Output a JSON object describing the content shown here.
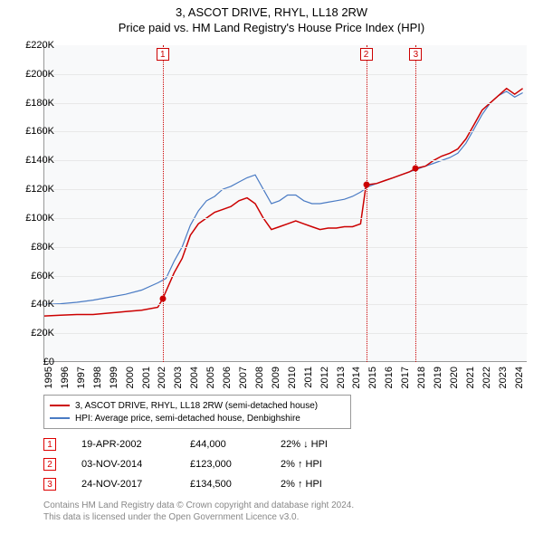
{
  "title": {
    "line1": "3, ASCOT DRIVE, RHYL, LL18 2RW",
    "line2": "Price paid vs. HM Land Registry's House Price Index (HPI)"
  },
  "chart": {
    "type": "line",
    "background_color": "#f8f9fa",
    "grid_color": "#e8e8e8",
    "axis_color": "#999999",
    "x_range": [
      1995,
      2024.8
    ],
    "y_range": [
      0,
      220000
    ],
    "y_ticks": [
      0,
      20000,
      40000,
      60000,
      80000,
      100000,
      120000,
      140000,
      160000,
      180000,
      200000,
      220000
    ],
    "y_tick_labels": [
      "£0",
      "£20K",
      "£40K",
      "£60K",
      "£80K",
      "£100K",
      "£120K",
      "£140K",
      "£160K",
      "£180K",
      "£200K",
      "£220K"
    ],
    "x_ticks": [
      1995,
      1996,
      1997,
      1998,
      1999,
      2000,
      2001,
      2002,
      2003,
      2004,
      2005,
      2006,
      2007,
      2008,
      2009,
      2010,
      2011,
      2012,
      2013,
      2014,
      2015,
      2016,
      2017,
      2018,
      2019,
      2020,
      2021,
      2022,
      2023,
      2024
    ],
    "tick_fontsize": 11,
    "series": {
      "property": {
        "color": "#cc0000",
        "width": 1.5,
        "points": [
          [
            1995,
            32000
          ],
          [
            1996,
            32500
          ],
          [
            1997,
            33000
          ],
          [
            1998,
            33000
          ],
          [
            1999,
            34000
          ],
          [
            2000,
            35000
          ],
          [
            2001,
            36000
          ],
          [
            2002,
            38000
          ],
          [
            2002.3,
            44000
          ],
          [
            2003,
            62000
          ],
          [
            2003.5,
            72000
          ],
          [
            2004,
            88000
          ],
          [
            2004.5,
            96000
          ],
          [
            2005,
            100000
          ],
          [
            2005.5,
            104000
          ],
          [
            2006,
            106000
          ],
          [
            2006.5,
            108000
          ],
          [
            2007,
            112000
          ],
          [
            2007.5,
            114000
          ],
          [
            2008,
            110000
          ],
          [
            2008.5,
            100000
          ],
          [
            2009,
            92000
          ],
          [
            2009.5,
            94000
          ],
          [
            2010,
            96000
          ],
          [
            2010.5,
            98000
          ],
          [
            2011,
            96000
          ],
          [
            2011.5,
            94000
          ],
          [
            2012,
            92000
          ],
          [
            2012.5,
            93000
          ],
          [
            2013,
            93000
          ],
          [
            2013.5,
            94000
          ],
          [
            2014,
            94000
          ],
          [
            2014.5,
            96000
          ],
          [
            2014.84,
            123000
          ],
          [
            2015.5,
            124000
          ],
          [
            2016,
            126000
          ],
          [
            2016.5,
            128000
          ],
          [
            2017,
            130000
          ],
          [
            2017.5,
            132000
          ],
          [
            2017.9,
            134500
          ],
          [
            2018.5,
            136000
          ],
          [
            2019,
            140000
          ],
          [
            2019.5,
            143000
          ],
          [
            2020,
            145000
          ],
          [
            2020.5,
            148000
          ],
          [
            2021,
            155000
          ],
          [
            2021.5,
            165000
          ],
          [
            2022,
            175000
          ],
          [
            2022.5,
            180000
          ],
          [
            2023,
            185000
          ],
          [
            2023.5,
            190000
          ],
          [
            2024,
            186000
          ],
          [
            2024.5,
            190000
          ]
        ]
      },
      "hpi": {
        "color": "#4a7bc4",
        "width": 1.2,
        "points": [
          [
            1995,
            40000
          ],
          [
            1996,
            40500
          ],
          [
            1997,
            41500
          ],
          [
            1998,
            43000
          ],
          [
            1999,
            45000
          ],
          [
            2000,
            47000
          ],
          [
            2001,
            50000
          ],
          [
            2002,
            55000
          ],
          [
            2002.5,
            58000
          ],
          [
            2003,
            70000
          ],
          [
            2003.5,
            80000
          ],
          [
            2004,
            95000
          ],
          [
            2004.5,
            105000
          ],
          [
            2005,
            112000
          ],
          [
            2005.5,
            115000
          ],
          [
            2006,
            120000
          ],
          [
            2006.5,
            122000
          ],
          [
            2007,
            125000
          ],
          [
            2007.5,
            128000
          ],
          [
            2008,
            130000
          ],
          [
            2008.5,
            120000
          ],
          [
            2009,
            110000
          ],
          [
            2009.5,
            112000
          ],
          [
            2010,
            116000
          ],
          [
            2010.5,
            116000
          ],
          [
            2011,
            112000
          ],
          [
            2011.5,
            110000
          ],
          [
            2012,
            110000
          ],
          [
            2012.5,
            111000
          ],
          [
            2013,
            112000
          ],
          [
            2013.5,
            113000
          ],
          [
            2014,
            115000
          ],
          [
            2014.5,
            118000
          ],
          [
            2015,
            122000
          ],
          [
            2015.5,
            124000
          ],
          [
            2016,
            126000
          ],
          [
            2016.5,
            128000
          ],
          [
            2017,
            130000
          ],
          [
            2017.5,
            132000
          ],
          [
            2018,
            134000
          ],
          [
            2018.5,
            136000
          ],
          [
            2019,
            138000
          ],
          [
            2019.5,
            140000
          ],
          [
            2020,
            142000
          ],
          [
            2020.5,
            145000
          ],
          [
            2021,
            152000
          ],
          [
            2021.5,
            162000
          ],
          [
            2022,
            172000
          ],
          [
            2022.5,
            180000
          ],
          [
            2023,
            185000
          ],
          [
            2023.5,
            188000
          ],
          [
            2024,
            184000
          ],
          [
            2024.5,
            187000
          ]
        ]
      }
    },
    "markers": [
      {
        "n": "1",
        "x": 2002.3,
        "y": 44000
      },
      {
        "n": "2",
        "x": 2014.84,
        "y": 123000
      },
      {
        "n": "3",
        "x": 2017.9,
        "y": 134500
      }
    ],
    "vline_color": "#cc0000",
    "marker_box_border": "#cc0000",
    "marker_box_text": "#cc0000",
    "point_color": "#cc0000"
  },
  "legend": {
    "items": [
      {
        "color": "#cc0000",
        "label": "3, ASCOT DRIVE, RHYL, LL18 2RW (semi-detached house)"
      },
      {
        "color": "#4a7bc4",
        "label": "HPI: Average price, semi-detached house, Denbighshire"
      }
    ]
  },
  "transactions": [
    {
      "n": "1",
      "date": "19-APR-2002",
      "price": "£44,000",
      "pct": "22% ↓ HPI"
    },
    {
      "n": "2",
      "date": "03-NOV-2014",
      "price": "£123,000",
      "pct": "2% ↑ HPI"
    },
    {
      "n": "3",
      "date": "24-NOV-2017",
      "price": "£134,500",
      "pct": "2% ↑ HPI"
    }
  ],
  "footer": {
    "line1": "Contains HM Land Registry data © Crown copyright and database right 2024.",
    "line2": "This data is licensed under the Open Government Licence v3.0."
  }
}
